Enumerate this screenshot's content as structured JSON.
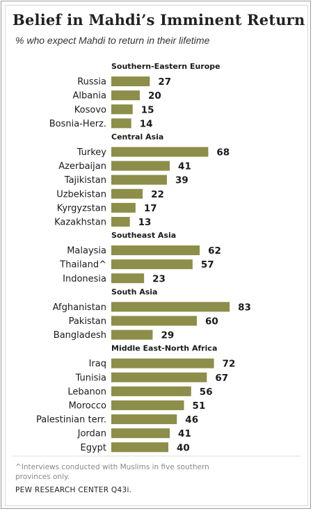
{
  "chart_data": {
    "type": "bar",
    "orientation": "horizontal",
    "title": "Belief in Mahdi’s Imminent Return",
    "subtitle": "% who expect Mahdi to return in their lifetime",
    "bar_color": "#8c8e4a",
    "groups": [
      {
        "name": "Southern-Eastern  Europe",
        "categories": [
          "Russia",
          "Albania",
          "Kosovo",
          "Bosnia-Herz."
        ],
        "values": [
          27,
          20,
          15,
          14
        ]
      },
      {
        "name": "Central Asia",
        "categories": [
          "Turkey",
          "Azerbaijan",
          "Tajikistan",
          "Uzbekistan",
          "Kyrgyzstan",
          "Kazakhstan"
        ],
        "values": [
          68,
          41,
          39,
          22,
          17,
          13
        ]
      },
      {
        "name": "Southeast  Asia",
        "categories": [
          "Malaysia",
          "Thailand^",
          "Indonesia"
        ],
        "values": [
          62,
          57,
          23
        ]
      },
      {
        "name": "South Asia",
        "categories": [
          "Afghanistan",
          "Pakistan",
          "Bangladesh"
        ],
        "values": [
          83,
          60,
          29
        ]
      },
      {
        "name": "Middle East-North  Africa",
        "categories": [
          "Iraq",
          "Tunisia",
          "Lebanon",
          "Morocco",
          "Palestinian terr.",
          "Jordan",
          "Egypt"
        ],
        "values": [
          72,
          67,
          56,
          51,
          46,
          41,
          40
        ]
      }
    ],
    "footnote": "^Interviews conducted with Muslims in five southern provinces only.",
    "source": "PEW RESEARCH  CENTER  Q43i."
  }
}
